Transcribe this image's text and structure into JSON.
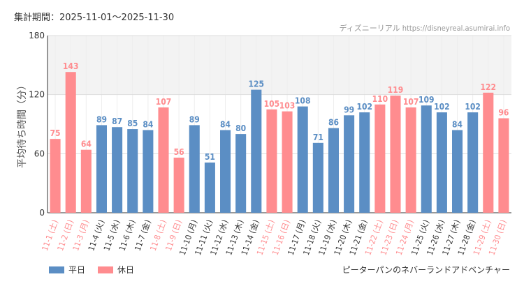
{
  "header": {
    "period": "集計期間：2025-11-01〜2025-11-30",
    "source": "ディズニーリアル https://disneyreal.asumirai.info"
  },
  "footer": {
    "attraction": "ピーターパンのネバーランドアドベンチャー"
  },
  "colors": {
    "weekday": "#5b8ec4",
    "holiday": "#ff8c8f",
    "band": "#f3f3f3",
    "grid": "#dddddd"
  },
  "chart_data": {
    "type": "bar",
    "title": "",
    "xlabel": "",
    "ylabel": "平均待ち時間（分）",
    "ylim": [
      0,
      180
    ],
    "yticks": [
      0,
      60,
      120,
      180
    ],
    "band": [
      120,
      180
    ],
    "categories": [
      "11-1 (土)",
      "11-2 (日)",
      "11-3 (月)",
      "11-4 (火)",
      "11-5 (水)",
      "11-6 (木)",
      "11-7 (金)",
      "11-8 (土)",
      "11-9 (日)",
      "11-10 (月)",
      "11-11 (火)",
      "11-12 (水)",
      "11-13 (木)",
      "11-14 (金)",
      "11-15 (土)",
      "11-16 (日)",
      "11-17 (月)",
      "11-18 (火)",
      "11-19 (水)",
      "11-20 (木)",
      "11-21 (金)",
      "11-22 (土)",
      "11-23 (日)",
      "11-24 (月)",
      "11-25 (火)",
      "11-26 (水)",
      "11-27 (木)",
      "11-28 (金)",
      "11-29 (土)",
      "11-30 (日)"
    ],
    "values": [
      75,
      143,
      64,
      89,
      87,
      85,
      84,
      107,
      56,
      89,
      51,
      84,
      80,
      125,
      105,
      103,
      108,
      71,
      86,
      99,
      102,
      110,
      119,
      107,
      109,
      102,
      84,
      102,
      122,
      96
    ],
    "holiday": [
      true,
      true,
      true,
      false,
      false,
      false,
      false,
      true,
      true,
      false,
      false,
      false,
      false,
      false,
      true,
      true,
      false,
      false,
      false,
      false,
      false,
      true,
      true,
      true,
      false,
      false,
      false,
      false,
      true,
      true
    ],
    "legend": [
      {
        "name": "平日",
        "key": "weekday"
      },
      {
        "name": "休日",
        "key": "holiday"
      }
    ]
  }
}
